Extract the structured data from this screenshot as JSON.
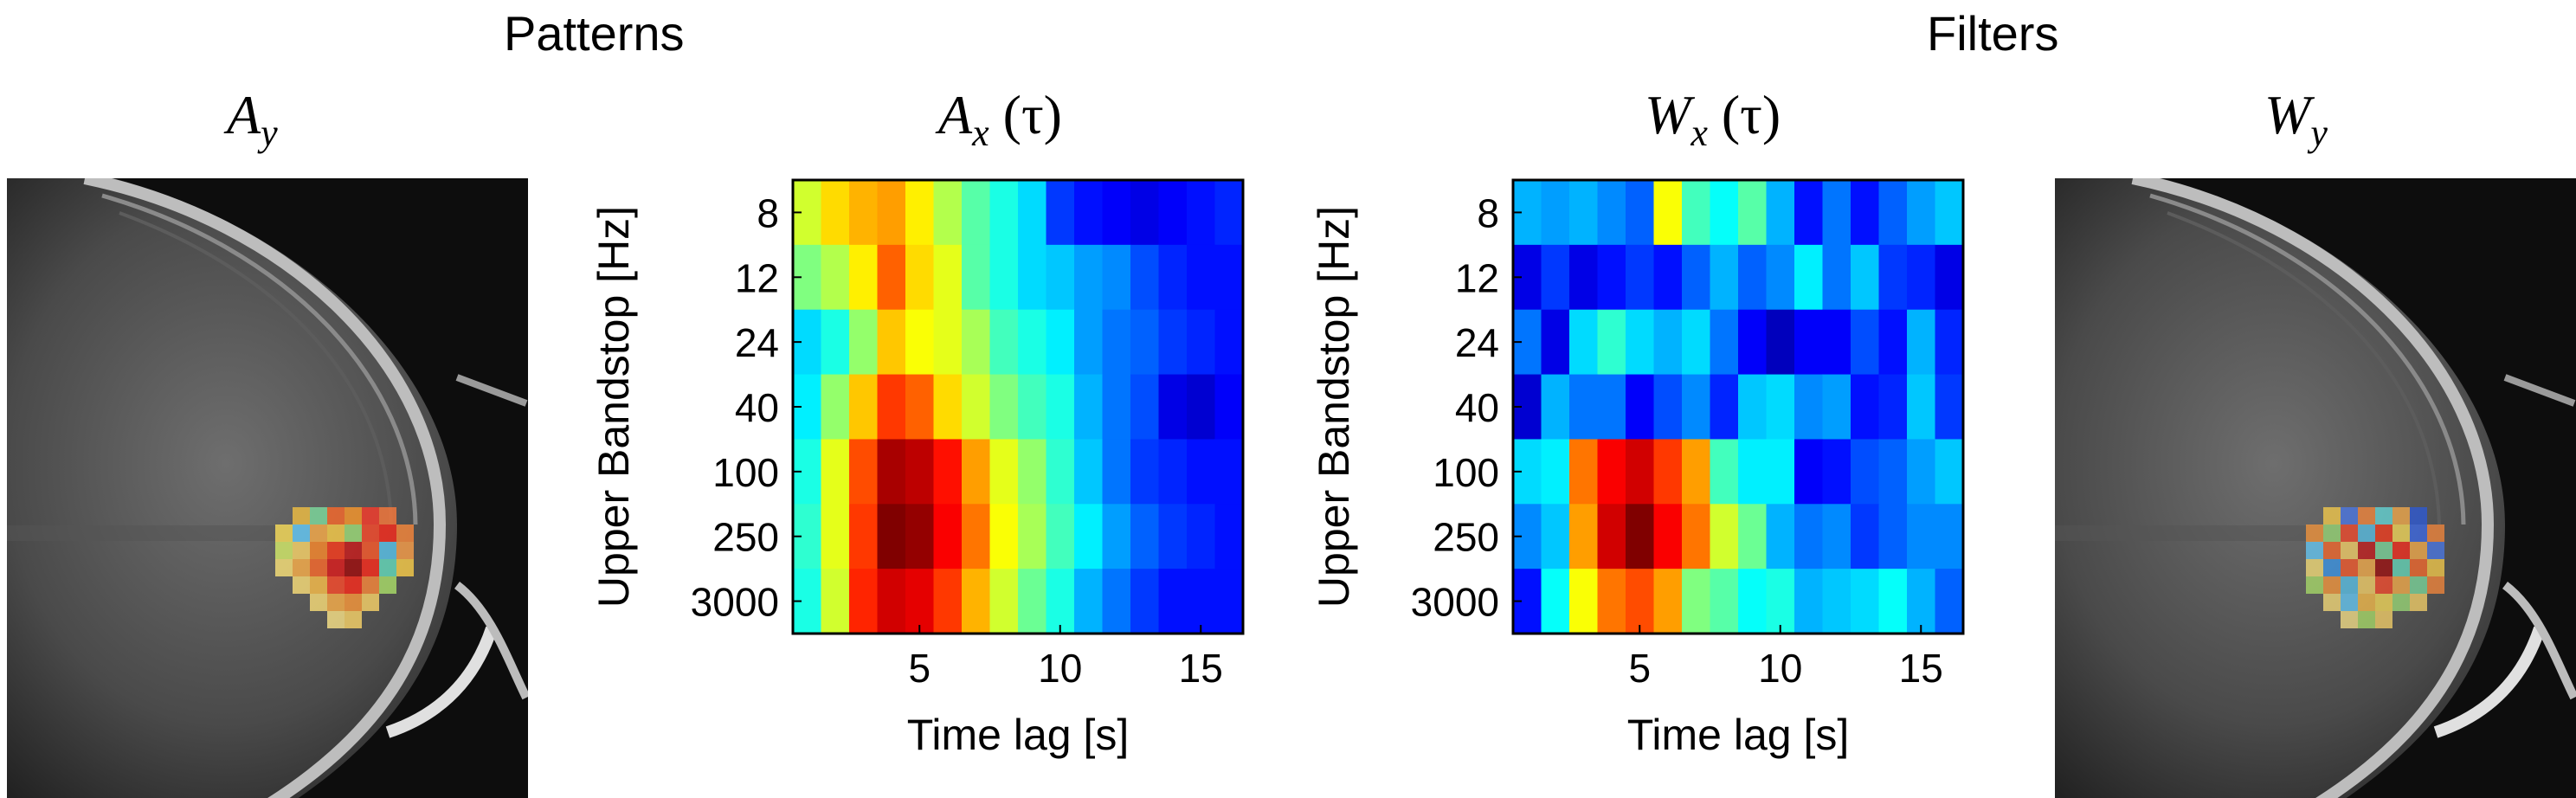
{
  "section_titles": {
    "left": "Patterns",
    "right": "Filters"
  },
  "panel_titles": {
    "a_y": {
      "main": "A",
      "sub": "y",
      "suffix": ""
    },
    "a_x": {
      "main": "A",
      "sub": "x",
      "suffix": "(τ)"
    },
    "w_x": {
      "main": "W",
      "sub": "x",
      "suffix": "(τ)"
    },
    "w_y": {
      "main": "W",
      "sub": "y",
      "suffix": ""
    }
  },
  "colormap": "jet",
  "chart_data": [
    {
      "type": "heatmap",
      "title": "Ax (τ)",
      "xlabel": "Time lag [s]",
      "ylabel": "Upper Bandstop [Hz]",
      "x_ticks": [
        5,
        10,
        15
      ],
      "xlim": [
        0.5,
        16.5
      ],
      "y_categories": [
        "8",
        "12",
        "24",
        "40",
        "100",
        "250",
        "3000"
      ],
      "values": [
        [
          0.58,
          0.66,
          0.7,
          0.72,
          0.64,
          0.55,
          0.46,
          0.4,
          0.34,
          0.18,
          0.14,
          0.12,
          0.1,
          0.12,
          0.14,
          0.16
        ],
        [
          0.5,
          0.55,
          0.64,
          0.78,
          0.66,
          0.6,
          0.46,
          0.4,
          0.34,
          0.32,
          0.28,
          0.26,
          0.2,
          0.16,
          0.14,
          0.14
        ],
        [
          0.34,
          0.4,
          0.52,
          0.68,
          0.62,
          0.6,
          0.54,
          0.44,
          0.4,
          0.36,
          0.28,
          0.24,
          0.22,
          0.18,
          0.16,
          0.14
        ],
        [
          0.36,
          0.52,
          0.68,
          0.82,
          0.78,
          0.66,
          0.58,
          0.5,
          0.44,
          0.4,
          0.3,
          0.24,
          0.2,
          0.1,
          0.08,
          0.12
        ],
        [
          0.4,
          0.6,
          0.8,
          0.96,
          0.94,
          0.86,
          0.72,
          0.6,
          0.52,
          0.42,
          0.32,
          0.24,
          0.18,
          0.16,
          0.14,
          0.14
        ],
        [
          0.42,
          0.6,
          0.82,
          1.0,
          0.98,
          0.88,
          0.76,
          0.62,
          0.54,
          0.44,
          0.36,
          0.28,
          0.22,
          0.18,
          0.16,
          0.14
        ],
        [
          0.4,
          0.58,
          0.84,
          0.92,
          0.9,
          0.82,
          0.7,
          0.58,
          0.48,
          0.4,
          0.3,
          0.24,
          0.18,
          0.14,
          0.14,
          0.14
        ]
      ]
    },
    {
      "type": "heatmap",
      "title": "Wx (τ)",
      "xlabel": "Time lag [s]",
      "ylabel": "Upper Bandstop [Hz]",
      "x_ticks": [
        5,
        10,
        15
      ],
      "xlim": [
        0.5,
        16.5
      ],
      "y_categories": [
        "8",
        "12",
        "24",
        "40",
        "100",
        "250",
        "3000"
      ],
      "values": [
        [
          0.3,
          0.28,
          0.3,
          0.26,
          0.22,
          0.62,
          0.44,
          0.38,
          0.46,
          0.3,
          0.14,
          0.24,
          0.14,
          0.22,
          0.28,
          0.32
        ],
        [
          0.1,
          0.18,
          0.1,
          0.14,
          0.18,
          0.14,
          0.22,
          0.3,
          0.22,
          0.26,
          0.36,
          0.24,
          0.32,
          0.18,
          0.16,
          0.1
        ],
        [
          0.24,
          0.1,
          0.34,
          0.42,
          0.34,
          0.3,
          0.34,
          0.24,
          0.12,
          0.06,
          0.12,
          0.12,
          0.2,
          0.14,
          0.3,
          0.16
        ],
        [
          0.08,
          0.3,
          0.24,
          0.24,
          0.12,
          0.2,
          0.26,
          0.16,
          0.32,
          0.34,
          0.26,
          0.28,
          0.14,
          0.16,
          0.32,
          0.18
        ],
        [
          0.34,
          0.36,
          0.76,
          0.88,
          0.92,
          0.82,
          0.72,
          0.44,
          0.36,
          0.36,
          0.12,
          0.14,
          0.2,
          0.22,
          0.28,
          0.32
        ],
        [
          0.26,
          0.32,
          0.72,
          0.92,
          1.0,
          0.88,
          0.76,
          0.58,
          0.48,
          0.3,
          0.24,
          0.26,
          0.18,
          0.22,
          0.26,
          0.26
        ],
        [
          0.14,
          0.38,
          0.62,
          0.76,
          0.8,
          0.72,
          0.5,
          0.46,
          0.38,
          0.4,
          0.3,
          0.32,
          0.34,
          0.38,
          0.3,
          0.22
        ]
      ]
    }
  ]
}
